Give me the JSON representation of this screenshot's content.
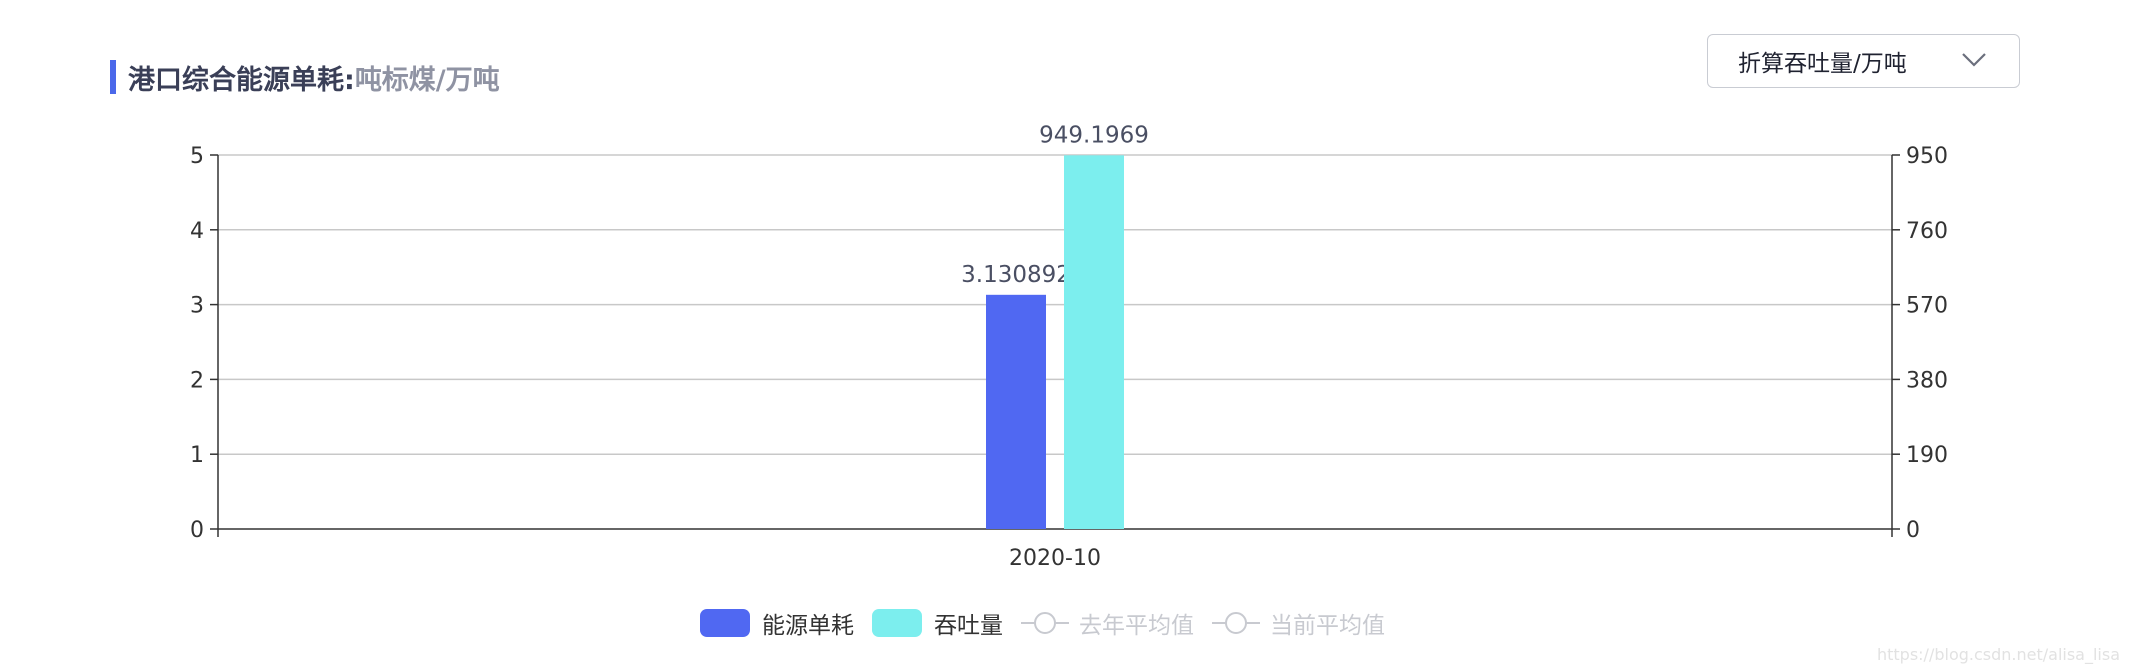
{
  "header": {
    "title": "港口综合能源单耗:",
    "unit": "吨标煤/万吨"
  },
  "dropdown": {
    "selected": "折算吞吐量/万吨",
    "icon": "chevron-down-icon"
  },
  "chart_data": {
    "type": "bar",
    "categories": [
      "2020-10"
    ],
    "series": [
      {
        "name": "能源单耗",
        "values": [
          3.130892
        ],
        "axis": "left",
        "color": "#5068f2",
        "label": "3.130892"
      },
      {
        "name": "吞吐量",
        "values": [
          949.1969
        ],
        "axis": "right",
        "color": "#7ceeee",
        "label": "949.1969"
      }
    ],
    "y_left": {
      "range": [
        0,
        5
      ],
      "ticks": [
        "0",
        "1",
        "2",
        "3",
        "4",
        "5"
      ]
    },
    "y_right": {
      "range": [
        0,
        950
      ],
      "ticks": [
        "0",
        "190",
        "380",
        "570",
        "760",
        "950"
      ]
    },
    "grid": true,
    "legend_position": "bottom"
  },
  "legend": {
    "items": [
      {
        "label": "能源单耗",
        "color": "#5068f2",
        "type": "bar",
        "active": true
      },
      {
        "label": "吞吐量",
        "color": "#7ceeee",
        "type": "bar",
        "active": true
      },
      {
        "label": "去年平均值",
        "type": "line",
        "active": false
      },
      {
        "label": "当前平均值",
        "type": "line",
        "active": false
      }
    ]
  },
  "watermark": "https://blog.csdn.net/alisa_lisa"
}
